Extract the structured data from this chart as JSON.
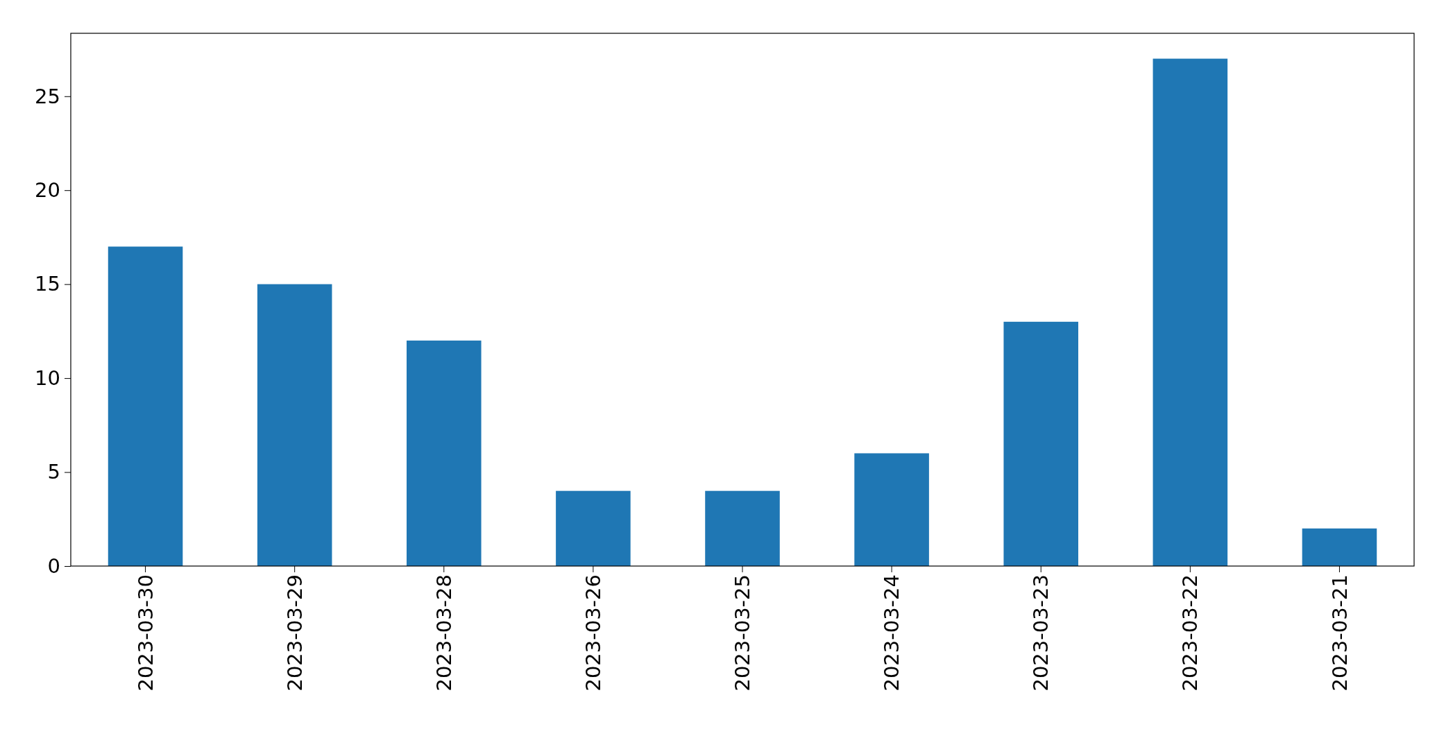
{
  "chart_data": {
    "type": "bar",
    "categories": [
      "2023-03-30",
      "2023-03-29",
      "2023-03-28",
      "2023-03-26",
      "2023-03-25",
      "2023-03-24",
      "2023-03-23",
      "2023-03-22",
      "2023-03-21"
    ],
    "values": [
      17,
      15,
      12,
      4,
      4,
      6,
      13,
      27,
      2
    ],
    "color": "#1f77b4",
    "ylim": [
      0,
      28.35
    ],
    "yticks": [
      0,
      5,
      10,
      15,
      20,
      25
    ],
    "grid": false
  }
}
